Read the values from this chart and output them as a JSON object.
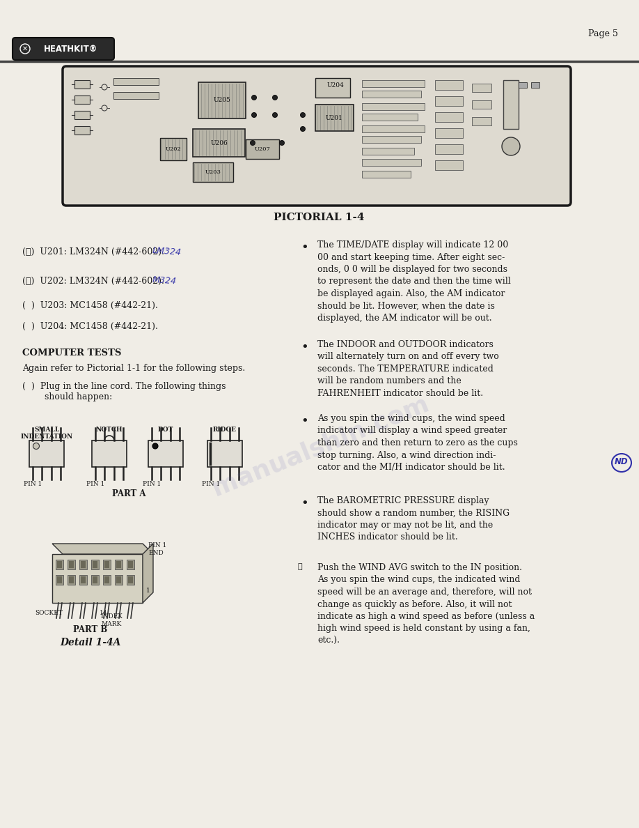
{
  "page_number": "Page 5",
  "background_color": "#f0ede6",
  "text_color": "#1a1a1a",
  "header_line_color": "#444444",
  "pictorial_label": "PICTORIAL 1-4",
  "detail_label": "Detail 1-4A",
  "part_a_label": "PART A",
  "part_b_label": "PART B",
  "computer_tests_header": "COMPUTER TESTS",
  "computer_tests_text": "Again refer to Pictorial 1-1 for the following steps.",
  "plug_in_text": "(  )  Plug in the line cord. The following things\n        should happen:",
  "bullet_points": [
    "The TIME/DATE display will indicate 12 00\n00 and start keeping time. After eight sec-\nonds, 0 0 will be displayed for two seconds\nto represent the date and then the time will\nbe displayed again. Also, the AM indicator\nshould be lit. However, when the date is\ndisplayed, the AM indicator will be out.",
    "The INDOOR and OUTDOOR indicators\nwill alternately turn on and off every two\nseconds. The TEMPERATURE indicated\nwill be random numbers and the\nFAHRENHEIT indicator should be lit.",
    "As you spin the wind cups, the wind speed\nindicator will display a wind speed greater\nthan zero and then return to zero as the cups\nstop turning. Also, a wind direction indi-\ncator and the MI/H indicator should be lit.",
    "The BAROMETRIC PRESSURE display\nshould show a random number, the RISING\nindicator may or may not be lit, and the\nINCHES indicator should be lit."
  ],
  "push_wind_text": "Push the WIND AVG switch to the IN position.\nAs you spin the wind cups, the indicated wind\nspeed will be an average and, therefore, will not\nchange as quickly as before. Also, it will not\nindicate as high a wind speed as before (unless a\nhigh wind speed is held constant by using a fan,\netc.).",
  "watermark_color": "#7070b0",
  "watermark_opacity": 0.15
}
